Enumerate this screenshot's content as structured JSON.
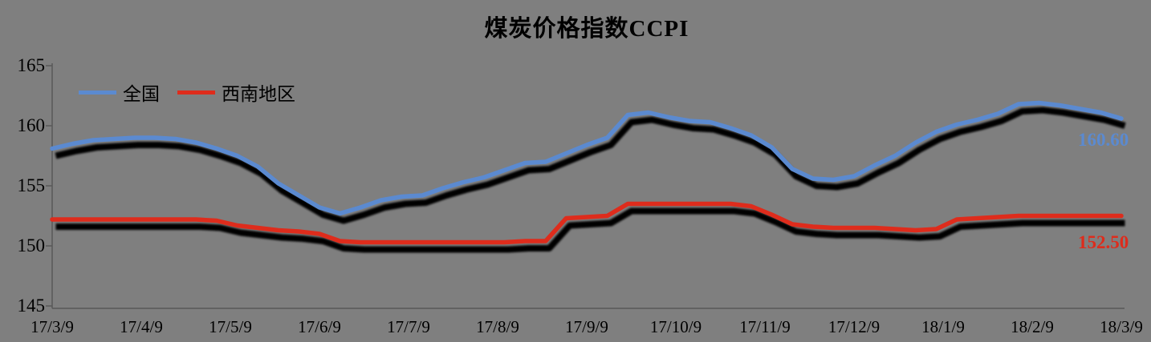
{
  "chart_data": {
    "type": "line",
    "title": "煤炭价格指数CCPI",
    "xlabel": "",
    "ylabel": "",
    "ylim": [
      145,
      165
    ],
    "yticks": [
      "145",
      "150",
      "155",
      "160",
      "165"
    ],
    "grid": "off",
    "legend_position": "top-left-inside",
    "x_tick_labels": [
      "17/3/9",
      "17/4/9",
      "17/5/9",
      "17/6/9",
      "17/7/9",
      "17/8/9",
      "17/9/9",
      "17/10/9",
      "17/11/9",
      "17/12/9",
      "18/1/9",
      "18/2/9",
      "18/3/9"
    ],
    "x_frequency": "weekly",
    "series": [
      {
        "name": "全国",
        "color": "#5B8AD0",
        "end_label": "160.60",
        "values": [
          158.1,
          158.5,
          158.8,
          158.9,
          159.0,
          159.0,
          158.9,
          158.6,
          158.1,
          157.5,
          156.6,
          155.2,
          154.2,
          153.2,
          152.7,
          153.2,
          153.8,
          154.1,
          154.2,
          154.8,
          155.3,
          155.7,
          156.3,
          156.9,
          157.0,
          157.7,
          158.4,
          159.0,
          160.9,
          161.1,
          160.7,
          160.4,
          160.3,
          159.8,
          159.2,
          158.2,
          156.4,
          155.6,
          155.5,
          155.8,
          156.7,
          157.5,
          158.6,
          159.5,
          160.1,
          160.5,
          161.0,
          161.8,
          161.9,
          161.7,
          161.4,
          161.1,
          160.6
        ]
      },
      {
        "name": "西南地区",
        "color": "#DE2C1C",
        "end_label": "152.50",
        "values": [
          152.2,
          152.2,
          152.2,
          152.2,
          152.2,
          152.2,
          152.2,
          152.2,
          152.1,
          151.7,
          151.5,
          151.3,
          151.2,
          151.0,
          150.4,
          150.3,
          150.3,
          150.3,
          150.3,
          150.3,
          150.3,
          150.3,
          150.3,
          150.4,
          150.4,
          152.3,
          152.4,
          152.5,
          153.5,
          153.5,
          153.5,
          153.5,
          153.5,
          153.5,
          153.3,
          152.6,
          151.8,
          151.6,
          151.5,
          151.5,
          151.5,
          151.4,
          151.3,
          151.4,
          152.2,
          152.3,
          152.4,
          152.5,
          152.5,
          152.5,
          152.5,
          152.5,
          152.5
        ]
      }
    ],
    "colors": {
      "background": "#7F7F7F",
      "axis": "#595959",
      "text": "#000000",
      "shadow": "#000000"
    }
  }
}
